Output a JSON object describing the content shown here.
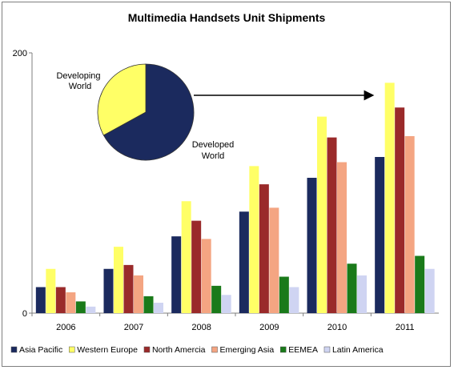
{
  "chart_data": {
    "type": "bar",
    "title": "Multimedia Handsets Unit Shipments",
    "xlabel": "",
    "ylabel": "",
    "ylim": [
      0,
      200
    ],
    "yticks": [
      "0",
      "200"
    ],
    "categories": [
      "2006",
      "2007",
      "2008",
      "2009",
      "2010",
      "2011"
    ],
    "series": [
      {
        "name": "Asia Pacific",
        "color": "#1b2a5e",
        "values": [
          20,
          34,
          59,
          78,
          104,
          120
        ]
      },
      {
        "name": "Western Europe",
        "color": "#ffff66",
        "values": [
          34,
          51,
          86,
          113,
          151,
          177
        ]
      },
      {
        "name": "North Amercia",
        "color": "#9a2a2a",
        "values": [
          20,
          37,
          71,
          99,
          135,
          158
        ]
      },
      {
        "name": "Emerging Asia",
        "color": "#f4a582",
        "values": [
          16,
          29,
          57,
          81,
          116,
          136
        ]
      },
      {
        "name": "EEMEA",
        "color": "#1a7a1a",
        "values": [
          9,
          13,
          21,
          28,
          38,
          44
        ]
      },
      {
        "name": "Latin America",
        "color": "#cfd4f2",
        "values": [
          5,
          8,
          14,
          20,
          29,
          34
        ]
      }
    ],
    "legend": {
      "position": "bottom"
    },
    "inset_pie": {
      "slices": [
        {
          "label": "Developing World",
          "color": "#ffff66",
          "fraction": 0.33
        },
        {
          "label": "Developed World",
          "color": "#1b2a5e",
          "fraction": 0.67
        }
      ],
      "arrow_to": "2011"
    }
  }
}
